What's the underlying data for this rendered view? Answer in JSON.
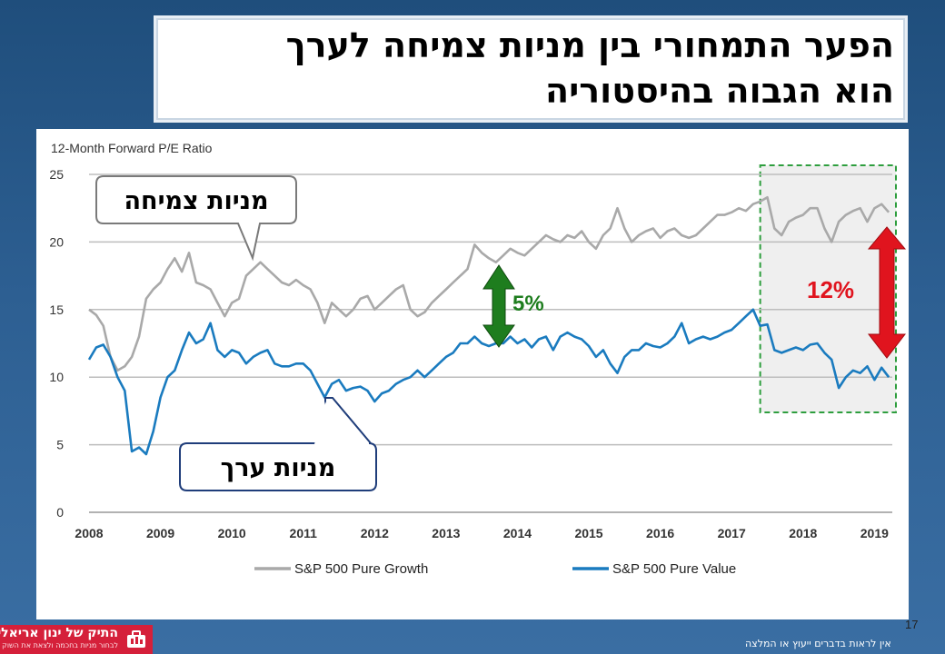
{
  "slide": {
    "title_line1": "הפער התמחורי בין מניות צמיחה לערך",
    "title_line2": "הוא הגבוה בהיסטוריה",
    "slide_number": "17",
    "disclaimer": "אין לראות בדברים ייעוץ או המלצה",
    "logo_name": "התיק של ינון אריאלי",
    "logo_tagline": "לבחור מניות בחכמה ולצאת את השוק"
  },
  "annotations": {
    "growth_callout": "מניות צמיחה",
    "value_callout": "מניות ערך",
    "gap_2013": "5%",
    "gap_now": "12%"
  },
  "colors": {
    "growth": "#a9a9a9",
    "value": "#1a7bbf",
    "gap_small_arrow": "#1e7d1e",
    "gap_large_arrow": "#e0141e",
    "highlight_box": "#2e9e3e",
    "highlight_fill": "#efefef"
  },
  "chart_data": {
    "type": "line",
    "ylabel": "12-Month Forward P/E Ratio",
    "xlim": [
      2008,
      2019.25
    ],
    "ylim": [
      0,
      25
    ],
    "yticks": [
      0,
      5,
      10,
      15,
      20,
      25
    ],
    "xticks": [
      2008,
      2009,
      2010,
      2011,
      2012,
      2013,
      2014,
      2015,
      2016,
      2017,
      2018,
      2019
    ],
    "grid": "horizontal",
    "legend_position": "bottom",
    "highlight_period": [
      2017.4,
      2019.25
    ],
    "series": [
      {
        "name": "S&P 500 Pure Growth",
        "x": [
          2008.0,
          2008.1,
          2008.2,
          2008.3,
          2008.4,
          2008.5,
          2008.6,
          2008.7,
          2008.8,
          2008.9,
          2009.0,
          2009.1,
          2009.2,
          2009.3,
          2009.4,
          2009.5,
          2009.6,
          2009.7,
          2009.8,
          2009.9,
          2010.0,
          2010.1,
          2010.2,
          2010.3,
          2010.4,
          2010.5,
          2010.6,
          2010.7,
          2010.8,
          2010.9,
          2011.0,
          2011.1,
          2011.2,
          2011.3,
          2011.4,
          2011.5,
          2011.6,
          2011.7,
          2011.8,
          2011.9,
          2012.0,
          2012.1,
          2012.2,
          2012.3,
          2012.4,
          2012.5,
          2012.6,
          2012.7,
          2012.8,
          2012.9,
          2013.0,
          2013.1,
          2013.2,
          2013.3,
          2013.4,
          2013.5,
          2013.6,
          2013.7,
          2013.8,
          2013.9,
          2014.0,
          2014.1,
          2014.2,
          2014.3,
          2014.4,
          2014.5,
          2014.6,
          2014.7,
          2014.8,
          2014.9,
          2015.0,
          2015.1,
          2015.2,
          2015.3,
          2015.4,
          2015.5,
          2015.6,
          2015.7,
          2015.8,
          2015.9,
          2016.0,
          2016.1,
          2016.2,
          2016.3,
          2016.4,
          2016.5,
          2016.6,
          2016.7,
          2016.8,
          2016.9,
          2017.0,
          2017.1,
          2017.2,
          2017.3,
          2017.4,
          2017.5,
          2017.6,
          2017.7,
          2017.8,
          2017.9,
          2018.0,
          2018.1,
          2018.2,
          2018.3,
          2018.4,
          2018.5,
          2018.6,
          2018.7,
          2018.8,
          2018.9,
          2019.0,
          2019.1,
          2019.2
        ],
        "values": [
          15.0,
          14.6,
          13.8,
          11.5,
          10.5,
          10.8,
          11.5,
          13.0,
          15.8,
          16.5,
          17.0,
          18.0,
          18.8,
          17.8,
          19.2,
          17.0,
          16.8,
          16.5,
          15.5,
          14.5,
          15.5,
          15.8,
          17.5,
          18.0,
          18.5,
          18.0,
          17.5,
          17.0,
          16.8,
          17.2,
          16.8,
          16.5,
          15.5,
          14.0,
          15.5,
          15.0,
          14.5,
          15.0,
          15.8,
          16.0,
          15.0,
          15.5,
          16.0,
          16.5,
          16.8,
          15.0,
          14.5,
          14.8,
          15.5,
          16.0,
          16.5,
          17.0,
          17.5,
          18.0,
          19.8,
          19.2,
          18.8,
          18.5,
          19.0,
          19.5,
          19.2,
          19.0,
          19.5,
          20.0,
          20.5,
          20.2,
          20.0,
          20.5,
          20.3,
          20.8,
          20.0,
          19.5,
          20.5,
          21.0,
          22.5,
          21.0,
          20.0,
          20.5,
          20.8,
          21.0,
          20.3,
          20.8,
          21.0,
          20.5,
          20.3,
          20.5,
          21.0,
          21.5,
          22.0,
          22.0,
          22.2,
          22.5,
          22.3,
          22.8,
          23.0,
          23.3,
          21.0,
          20.5,
          21.5,
          21.8,
          22.0,
          22.5,
          22.5,
          21.0,
          20.0,
          21.5,
          22.0,
          22.3,
          22.5,
          21.5,
          22.5,
          22.8,
          22.2
        ]
      },
      {
        "name": "S&P 500 Pure Value",
        "x": [
          2008.0,
          2008.1,
          2008.2,
          2008.3,
          2008.4,
          2008.5,
          2008.6,
          2008.7,
          2008.8,
          2008.9,
          2009.0,
          2009.1,
          2009.2,
          2009.3,
          2009.4,
          2009.5,
          2009.6,
          2009.7,
          2009.8,
          2009.9,
          2010.0,
          2010.1,
          2010.2,
          2010.3,
          2010.4,
          2010.5,
          2010.6,
          2010.7,
          2010.8,
          2010.9,
          2011.0,
          2011.1,
          2011.2,
          2011.3,
          2011.4,
          2011.5,
          2011.6,
          2011.7,
          2011.8,
          2011.9,
          2012.0,
          2012.1,
          2012.2,
          2012.3,
          2012.4,
          2012.5,
          2012.6,
          2012.7,
          2012.8,
          2012.9,
          2013.0,
          2013.1,
          2013.2,
          2013.3,
          2013.4,
          2013.5,
          2013.6,
          2013.7,
          2013.8,
          2013.9,
          2014.0,
          2014.1,
          2014.2,
          2014.3,
          2014.4,
          2014.5,
          2014.6,
          2014.7,
          2014.8,
          2014.9,
          2015.0,
          2015.1,
          2015.2,
          2015.3,
          2015.4,
          2015.5,
          2015.6,
          2015.7,
          2015.8,
          2015.9,
          2016.0,
          2016.1,
          2016.2,
          2016.3,
          2016.4,
          2016.5,
          2016.6,
          2016.7,
          2016.8,
          2016.9,
          2017.0,
          2017.1,
          2017.2,
          2017.3,
          2017.4,
          2017.5,
          2017.6,
          2017.7,
          2017.8,
          2017.9,
          2018.0,
          2018.1,
          2018.2,
          2018.3,
          2018.4,
          2018.5,
          2018.6,
          2018.7,
          2018.8,
          2018.9,
          2019.0,
          2019.1,
          2019.2
        ],
        "values": [
          11.3,
          12.2,
          12.4,
          11.5,
          10.0,
          9.0,
          4.5,
          4.8,
          4.3,
          6.0,
          8.5,
          10.0,
          10.5,
          12.0,
          13.3,
          12.5,
          12.8,
          14.0,
          12.0,
          11.5,
          12.0,
          11.8,
          11.0,
          11.5,
          11.8,
          12.0,
          11.0,
          10.8,
          10.8,
          11.0,
          11.0,
          10.5,
          9.5,
          8.5,
          9.5,
          9.8,
          9.0,
          9.2,
          9.3,
          9.0,
          8.2,
          8.8,
          9.0,
          9.5,
          9.8,
          10.0,
          10.5,
          10.0,
          10.5,
          11.0,
          11.5,
          11.8,
          12.5,
          12.5,
          13.0,
          12.5,
          12.3,
          12.5,
          12.5,
          13.0,
          12.5,
          12.8,
          12.2,
          12.8,
          13.0,
          12.0,
          13.0,
          13.3,
          13.0,
          12.8,
          12.3,
          11.5,
          12.0,
          11.0,
          10.3,
          11.5,
          12.0,
          12.0,
          12.5,
          12.3,
          12.2,
          12.5,
          13.0,
          14.0,
          12.5,
          12.8,
          13.0,
          12.8,
          13.0,
          13.3,
          13.5,
          14.0,
          14.5,
          15.0,
          13.8,
          13.9,
          12.0,
          11.8,
          12.0,
          12.2,
          12.0,
          12.4,
          12.5,
          11.8,
          11.3,
          9.2,
          10.0,
          10.5,
          10.3,
          10.8,
          9.8,
          10.7,
          10.0
        ]
      }
    ]
  }
}
